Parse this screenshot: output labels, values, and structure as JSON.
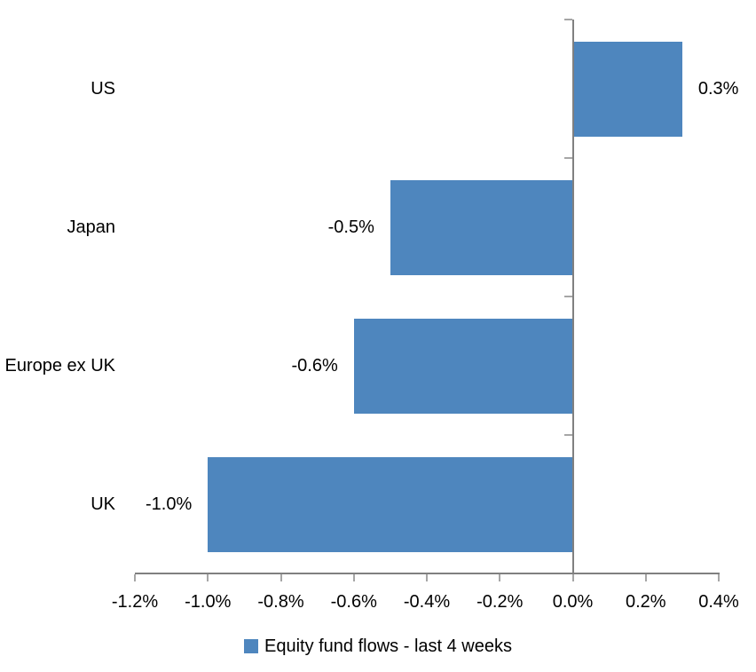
{
  "chart_data": {
    "type": "bar",
    "orientation": "horizontal",
    "categories": [
      "US",
      "Japan",
      "Europe ex UK",
      "UK"
    ],
    "series": [
      {
        "name": "Equity fund flows - last 4 weeks",
        "values": [
          0.3,
          -0.5,
          -0.6,
          -1.0
        ],
        "labels": [
          "0.3%",
          "-0.5%",
          "-0.6%",
          "-1.0%"
        ],
        "color": "#4E86BE"
      }
    ],
    "xlim": [
      -1.2,
      0.4
    ],
    "x_ticks": [
      {
        "value": -1.2,
        "label": "-1.2%"
      },
      {
        "value": -1.0,
        "label": "-1.0%"
      },
      {
        "value": -0.8,
        "label": "-0.8%"
      },
      {
        "value": -0.6,
        "label": "-0.6%"
      },
      {
        "value": -0.4,
        "label": "-0.4%"
      },
      {
        "value": -0.2,
        "label": "-0.2%"
      },
      {
        "value": 0.0,
        "label": "0.0%"
      },
      {
        "value": 0.2,
        "label": "0.2%"
      },
      {
        "value": 0.4,
        "label": "0.4%"
      }
    ],
    "grid": false,
    "legend_position": "bottom",
    "colors": {
      "bar": "#4E86BE",
      "axis_line": "#808080",
      "tick": "#A6A6A6",
      "text": "#000000",
      "background": "#FFFFFF"
    }
  }
}
